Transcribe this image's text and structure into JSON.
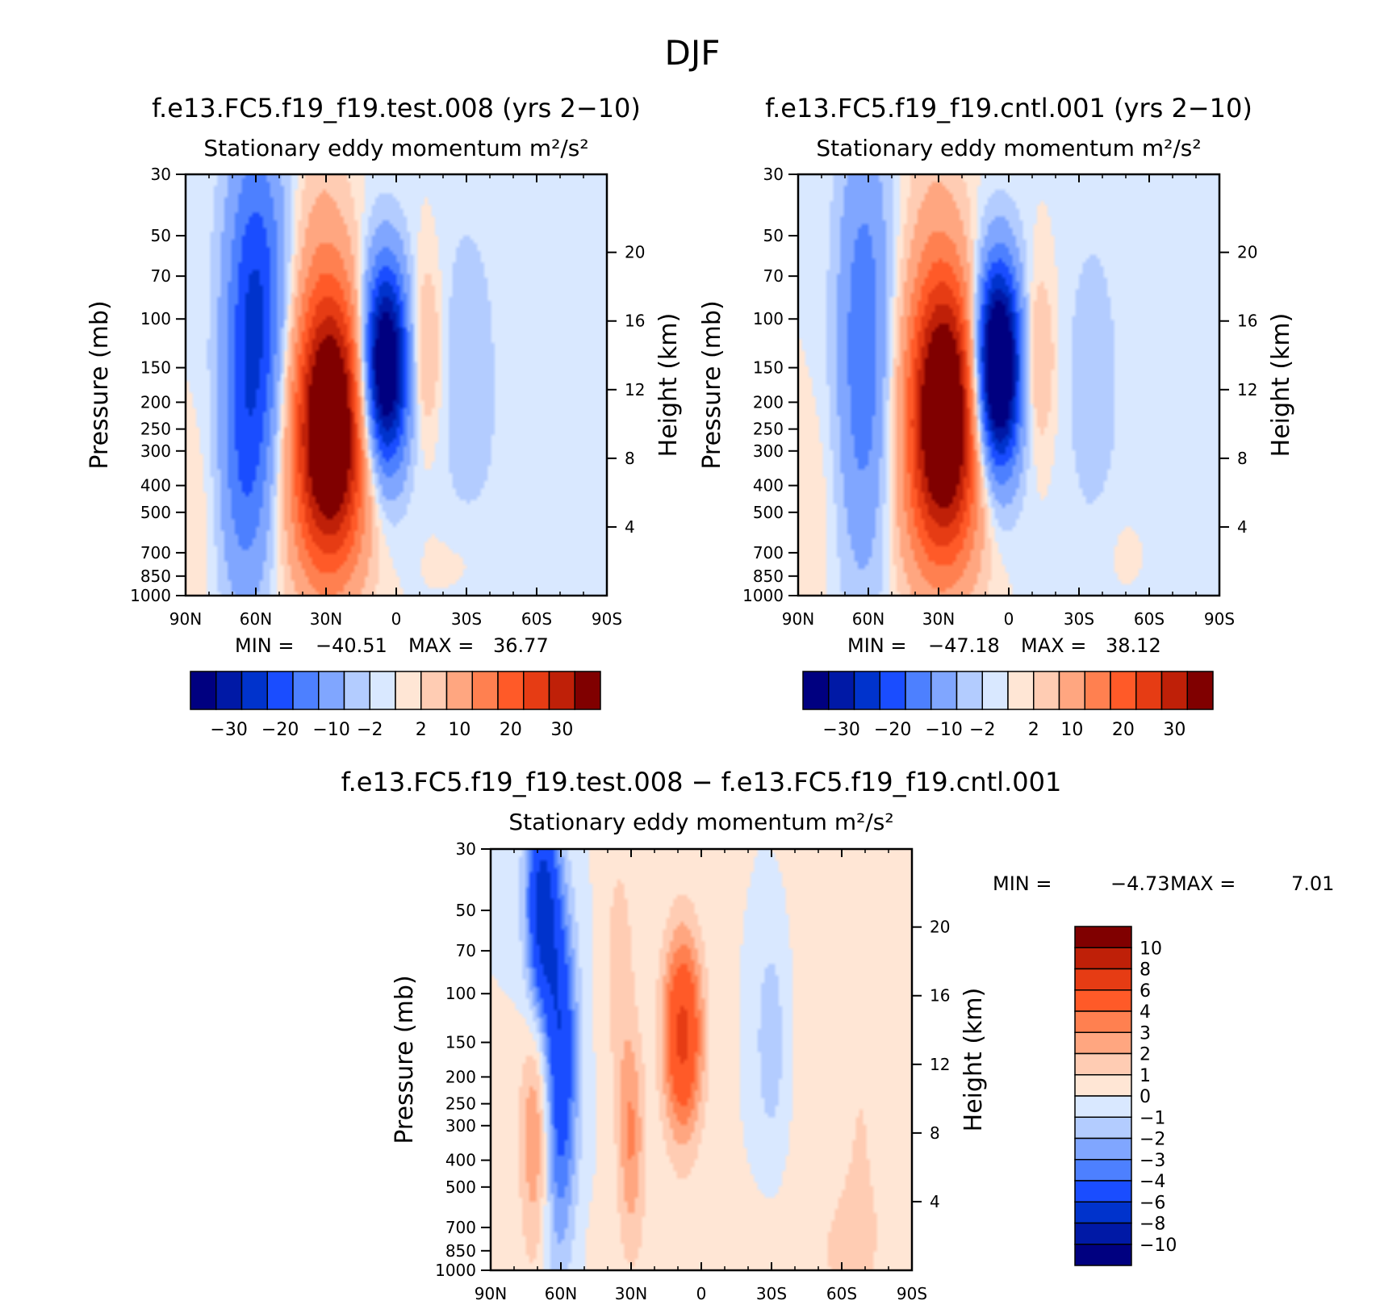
{
  "figure": {
    "title": "DJF"
  },
  "colors": {
    "cool": [
      "#000080",
      "#0019a6",
      "#0033cc",
      "#1a4dff",
      "#4d80ff",
      "#80a6ff",
      "#b3ccff",
      "#d9e8ff"
    ],
    "warm": [
      "#ffe6d5",
      "#ffccb3",
      "#ffa680",
      "#ff8050",
      "#ff5a28",
      "#e63c14",
      "#bf2008",
      "#800000"
    ]
  },
  "chart_data": [
    {
      "id": "test",
      "type": "heatmap",
      "title": "f.e13.FC5.f19_f19.test.008 (yrs 2−10)",
      "subtitle": "Stationary eddy momentum  m²/s²",
      "ylabel": "Pressure (mb)",
      "y2label": "Height (km)",
      "x_ticks": [
        "90N",
        "60N",
        "30N",
        "0",
        "30S",
        "60S",
        "90S"
      ],
      "y_ticks": [
        30,
        50,
        70,
        100,
        150,
        200,
        250,
        300,
        400,
        500,
        700,
        850,
        1000
      ],
      "y2_ticks": [
        20,
        16,
        12,
        8,
        4
      ],
      "stats": {
        "min_label": "MIN =",
        "min": "−40.51",
        "max_label": "MAX =",
        "max": "36.77"
      },
      "colorbar_labels": [
        "−30",
        "−20",
        "−10",
        "−2",
        "2",
        "10",
        "20",
        "30"
      ],
      "features": [
        {
          "lat": 60,
          "p": 90,
          "amp": -20.5,
          "wlat": 9,
          "wlnp": 1.0
        },
        {
          "lat": 65,
          "p": 400,
          "amp": -10.0,
          "wlat": 8,
          "wlnp": 0.8
        },
        {
          "lat": 28,
          "p": 220,
          "amp": 39.0,
          "wlat": 11,
          "wlnp": 0.75
        },
        {
          "lat": 30,
          "p": 500,
          "amp": 10.0,
          "wlat": 12,
          "wlnp": 0.6
        },
        {
          "lat": 32,
          "p": 60,
          "amp": 4.0,
          "wlat": 8,
          "wlnp": 0.9
        },
        {
          "lat": 5,
          "p": 150,
          "amp": -43.0,
          "wlat": 7,
          "wlnp": 0.6
        },
        {
          "lat": -12,
          "p": 130,
          "amp": 7.0,
          "wlat": 5,
          "wlnp": 0.5
        },
        {
          "lat": -30,
          "p": 160,
          "amp": -4.0,
          "wlat": 8,
          "wlnp": 0.9
        },
        {
          "lat": -30,
          "p": 700,
          "amp": 1.4,
          "wlat": 10,
          "wlnp": 0.3
        },
        {
          "lat": -60,
          "p": 500,
          "amp": -1.0,
          "wlat": 25,
          "wlnp": 2.0
        },
        {
          "lat": 82,
          "p": 500,
          "amp": 1.5,
          "wlat": 6,
          "wlnp": 0.6
        }
      ]
    },
    {
      "id": "cntl",
      "type": "heatmap",
      "title": "f.e13.FC5.f19_f19.cntl.001 (yrs 2−10)",
      "subtitle": "Stationary eddy momentum  m²/s²",
      "ylabel": "Pressure (mb)",
      "y2label": "Height (km)",
      "x_ticks": [
        "90N",
        "60N",
        "30N",
        "0",
        "30S",
        "60S",
        "90S"
      ],
      "y_ticks": [
        30,
        50,
        70,
        100,
        150,
        200,
        250,
        300,
        400,
        500,
        700,
        850,
        1000
      ],
      "y2_ticks": [
        20,
        16,
        12,
        8,
        4
      ],
      "stats": {
        "min_label": "MIN =",
        "min": "−47.18",
        "max_label": "MAX =",
        "max": "38.12"
      },
      "colorbar_labels": [
        "−30",
        "−20",
        "−10",
        "−2",
        "2",
        "10",
        "20",
        "30"
      ],
      "features": [
        {
          "lat": 62,
          "p": 130,
          "amp": -14.0,
          "wlat": 8,
          "wlnp": 1.3
        },
        {
          "lat": 27,
          "p": 200,
          "amp": 40.0,
          "wlat": 11,
          "wlnp": 0.75
        },
        {
          "lat": 30,
          "p": 500,
          "amp": 10.0,
          "wlat": 12,
          "wlnp": 0.6
        },
        {
          "lat": 32,
          "p": 60,
          "amp": 4.0,
          "wlat": 8,
          "wlnp": 0.9
        },
        {
          "lat": 5,
          "p": 150,
          "amp": -50.0,
          "wlat": 7,
          "wlnp": 0.6
        },
        {
          "lat": -12,
          "p": 140,
          "amp": 7.0,
          "wlat": 5,
          "wlnp": 0.5
        },
        {
          "lat": -35,
          "p": 160,
          "amp": -3.0,
          "wlat": 8,
          "wlnp": 0.9
        },
        {
          "lat": -50,
          "p": 700,
          "amp": 1.4,
          "wlat": 8,
          "wlnp": 0.3
        },
        {
          "lat": -60,
          "p": 400,
          "amp": -1.0,
          "wlat": 25,
          "wlnp": 2.0
        },
        {
          "lat": 82,
          "p": 500,
          "amp": 1.5,
          "wlat": 6,
          "wlnp": 0.6
        }
      ]
    },
    {
      "id": "diff",
      "type": "heatmap",
      "title": "f.e13.FC5.f19_f19.test.008 − f.e13.FC5.f19_f19.cntl.001",
      "subtitle": "Stationary eddy momentum  m²/s²",
      "ylabel": "Pressure (mb)",
      "y2label": "Height (km)",
      "x_ticks": [
        "90N",
        "60N",
        "30N",
        "0",
        "30S",
        "60S",
        "90S"
      ],
      "y_ticks": [
        30,
        50,
        70,
        100,
        150,
        200,
        250,
        300,
        400,
        500,
        700,
        850,
        1000
      ],
      "y2_ticks": [
        20,
        16,
        12,
        8,
        4
      ],
      "stats": {
        "min_label": "MIN =",
        "min": "−4.73",
        "max_label": "MAX =",
        "max": "7.01"
      },
      "colorbar_labels": [
        "10",
        "8",
        "6",
        "4",
        "3",
        "2",
        "1",
        "0",
        "−1",
        "−2",
        "−3",
        "−4",
        "−6",
        "−8",
        "−10"
      ],
      "features": [
        {
          "lat": 68,
          "p": 50,
          "amp": -7.0,
          "wlat": 5,
          "wlnp": 0.7
        },
        {
          "lat": 60,
          "p": 150,
          "amp": -5.0,
          "wlat": 5,
          "wlnp": 0.8
        },
        {
          "lat": 63,
          "p": 500,
          "amp": -2.5,
          "wlat": 6,
          "wlnp": 0.8
        },
        {
          "lat": 70,
          "p": 320,
          "amp": 4.0,
          "wlat": 5,
          "wlnp": 0.8
        },
        {
          "lat": 30,
          "p": 330,
          "amp": 3.0,
          "wlat": 4,
          "wlnp": 0.6
        },
        {
          "lat": 35,
          "p": 80,
          "amp": 1.5,
          "wlat": 5,
          "wlnp": 0.8
        },
        {
          "lat": 8,
          "p": 140,
          "amp": 6.5,
          "wlat": 6,
          "wlnp": 0.6
        },
        {
          "lat": -30,
          "p": 150,
          "amp": -1.8,
          "wlat": 6,
          "wlnp": 0.8
        },
        {
          "lat": -68,
          "p": 300,
          "amp": 1.0,
          "wlat": 25,
          "wlnp": 3.0
        },
        {
          "lat": 0,
          "p": 900,
          "amp": 0.5,
          "wlat": 40,
          "wlnp": 0.4
        }
      ]
    }
  ]
}
